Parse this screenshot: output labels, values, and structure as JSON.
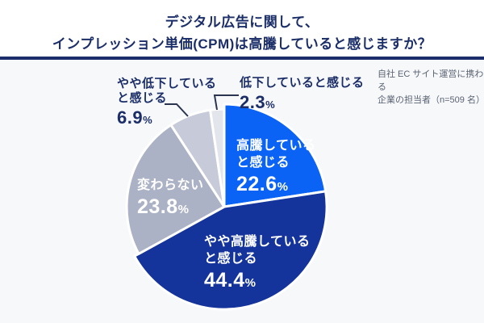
{
  "header": {
    "title_line1": "デジタル広告に関して、",
    "title_line2": "インプレッション単価(CPM)は高騰していると感じますか？"
  },
  "annotation": {
    "line1": "自社 EC サイト運営に携わる",
    "line2": "企業の担当者（n=509 名）"
  },
  "percent_suffix": "%",
  "colors": {
    "title_navy": "#1B2E68",
    "divider_navy": "#1B2D6B",
    "background": "#F7F8FA",
    "header_background": "#FFFFFF",
    "leader_line": "#2B3550",
    "note_gray": "#5A6272"
  },
  "chart_data": {
    "type": "pie",
    "title": "インプレッション単価(CPM)は高騰していると感じますか？",
    "unit": "%",
    "start_angle_deg": 0,
    "direction": "clockwise",
    "legend_position": "none",
    "slices": [
      {
        "label": "高騰していると感じる",
        "value": 22.6,
        "pct": "22.6",
        "color": "#0B63F5",
        "label_lines": [
          "高騰している",
          "と感じる"
        ],
        "label_placement": "inside"
      },
      {
        "label": "やや高騰していると感じる",
        "value": 44.4,
        "pct": "44.4",
        "color": "#14349C",
        "label_lines": [
          "やや高騰している",
          "と感じる"
        ],
        "label_placement": "inside"
      },
      {
        "label": "変わらない",
        "value": 23.8,
        "pct": "23.8",
        "color": "#ACB2C6",
        "label_lines": [
          "変わらない"
        ],
        "label_placement": "inside"
      },
      {
        "label": "やや低下していると感じる",
        "value": 6.9,
        "pct": "6.9",
        "color": "#C7CBD9",
        "label_lines": [
          "やや低下している",
          "と感じる"
        ],
        "label_placement": "outside"
      },
      {
        "label": "低下していると感じる",
        "value": 2.3,
        "pct": "2.3",
        "color": "#E3E5EC",
        "label_lines": [
          "低下していると感じる"
        ],
        "label_placement": "outside"
      }
    ]
  }
}
